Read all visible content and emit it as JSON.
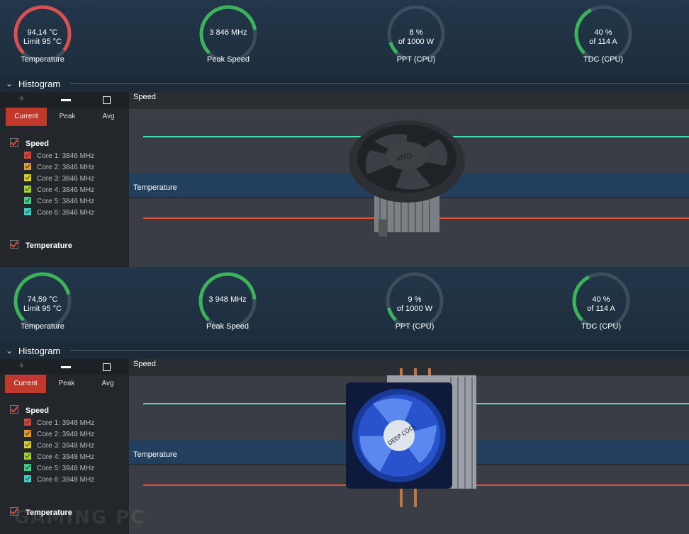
{
  "panels": [
    {
      "gauges": [
        {
          "value": "94,14 °C",
          "sub": "Limit 95 °C",
          "label": "Temperature",
          "fraction": 0.97,
          "color": "#d95050"
        },
        {
          "value": "3 846  MHz",
          "sub": "",
          "label": "Peak Speed",
          "fraction": 0.8,
          "color": "#3bb35a"
        },
        {
          "value": "8 %",
          "sub": "of 1000 W",
          "label": "PPT (CPU)",
          "fraction": 0.1,
          "color": "#3bb35a"
        },
        {
          "value": "40 %",
          "sub": "of 114 A",
          "label": "TDC (CPU)",
          "fraction": 0.4,
          "color": "#3bb35a"
        }
      ],
      "histogram": {
        "title": "Histogram",
        "tabs": [
          "Current",
          "Peak",
          "Avg"
        ],
        "active_tab": "Current",
        "speed_section": "Speed",
        "cores": [
          "Core 1: 3846 MHz",
          "Core 2: 3846 MHz",
          "Core 3: 3846 MHz",
          "Core 4: 3846 MHz",
          "Core 5: 3846 MHz",
          "Core 6: 3846 MHz"
        ],
        "temperature_section": "Temperature",
        "graph_speed_label": "Speed",
        "graph_temperature_label": "Temperature"
      }
    },
    {
      "gauges": [
        {
          "value": "74,59 °C",
          "sub": "Limit 95 °C",
          "label": "Temperature",
          "fraction": 0.78,
          "color": "#3bb35a"
        },
        {
          "value": "3 948  MHz",
          "sub": "",
          "label": "Peak Speed",
          "fraction": 0.82,
          "color": "#3bb35a"
        },
        {
          "value": "9 %",
          "sub": "of 1000 W",
          "label": "PPT (CPU)",
          "fraction": 0.11,
          "color": "#3bb35a"
        },
        {
          "value": "40 %",
          "sub": "of 114 A",
          "label": "TDC (CPU)",
          "fraction": 0.4,
          "color": "#3bb35a"
        }
      ],
      "histogram": {
        "title": "Histogram",
        "tabs": [
          "Current",
          "Peak",
          "Avg"
        ],
        "active_tab": "Current",
        "speed_section": "Speed",
        "cores": [
          "Core 1: 3948 MHz",
          "Core 2: 3948 MHz",
          "Core 3: 3948 MHz",
          "Core 4: 3948 MHz",
          "Core 5: 3948 MHz",
          "Core 6: 3948 MHz"
        ],
        "temperature_section": "Temperature",
        "graph_speed_label": "Speed",
        "graph_temperature_label": "Temperature"
      }
    }
  ],
  "core_colors": [
    "#d9443a",
    "#e09a2a",
    "#d6cf2a",
    "#a6d12e",
    "#3ed08a",
    "#3ed0c6"
  ],
  "colors": {
    "accent": "#c0392b",
    "speed_line": "#3ee0b4",
    "temp_line": "#e0502e"
  },
  "cooler_1_text": "AMD",
  "cooler_2_text": "DEEP COOL",
  "watermark": "GAMING PC"
}
